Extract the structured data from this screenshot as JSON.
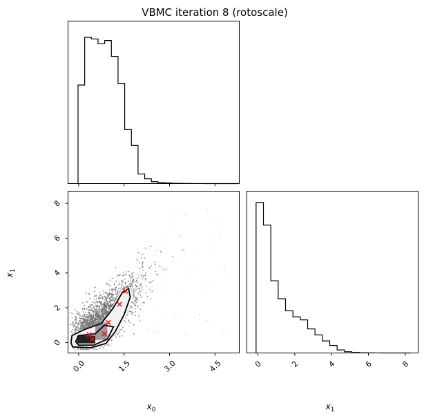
{
  "chart_data": {
    "type": "corner",
    "title": "VBMC iteration 8 (rotoscale)",
    "variables": [
      {
        "label": "x",
        "subscript": "0"
      },
      {
        "label": "x",
        "subscript": "1"
      }
    ],
    "hist_x0": {
      "bin_edges": [
        -0.02,
        0.2,
        0.42,
        0.64,
        0.86,
        1.08,
        1.3,
        1.52,
        1.74,
        1.96,
        2.18,
        2.4,
        2.62,
        2.84,
        3.06,
        3.28,
        3.5,
        3.72,
        3.94,
        4.16,
        4.38,
        4.6,
        4.82,
        5.04,
        5.26
      ],
      "counts": [
        62,
        92,
        91,
        88,
        90,
        80,
        63,
        34,
        24,
        6,
        3,
        1.2,
        0.6,
        0.4,
        0.2,
        0.1,
        0.05,
        0.03,
        0.02,
        0.01,
        0.01,
        0,
        0,
        0
      ]
    },
    "hist_x1": {
      "bin_edges": [
        -0.1,
        0.3,
        0.7,
        1.1,
        1.5,
        1.9,
        2.3,
        2.7,
        3.1,
        3.5,
        3.9,
        4.3,
        4.7,
        5.1,
        5.5,
        5.9,
        6.3,
        6.7,
        7.1,
        7.5,
        7.9,
        8.3
      ],
      "counts": [
        100,
        85,
        48,
        36,
        28,
        24,
        22,
        16,
        12,
        8,
        5,
        2,
        0.8,
        0.3,
        0.1,
        0.05,
        0.02,
        0.01,
        0,
        0,
        0
      ]
    },
    "scatter_xlim": [
      -0.35,
      5.3
    ],
    "scatter_ylim": [
      -0.6,
      8.7
    ],
    "hist_x1_xlim": [
      -0.6,
      8.7
    ],
    "x0_ticks": [
      "0.0",
      "1.5",
      "3.0",
      "4.5"
    ],
    "x0_tick_values": [
      0.0,
      1.5,
      3.0,
      4.5
    ],
    "x1_ticks": [
      "0",
      "2",
      "4",
      "6",
      "8"
    ],
    "x1_tick_values": [
      0,
      2,
      4,
      6,
      8
    ],
    "marker_points": [
      {
        "x": 0.35,
        "y": 0.45
      },
      {
        "x": 0.45,
        "y": 0.2
      },
      {
        "x": 0.85,
        "y": 0.5
      },
      {
        "x": 0.98,
        "y": 1.15
      },
      {
        "x": 1.35,
        "y": 2.2
      },
      {
        "x": 1.55,
        "y": 2.95
      }
    ],
    "marker_color": "#ff0000"
  }
}
